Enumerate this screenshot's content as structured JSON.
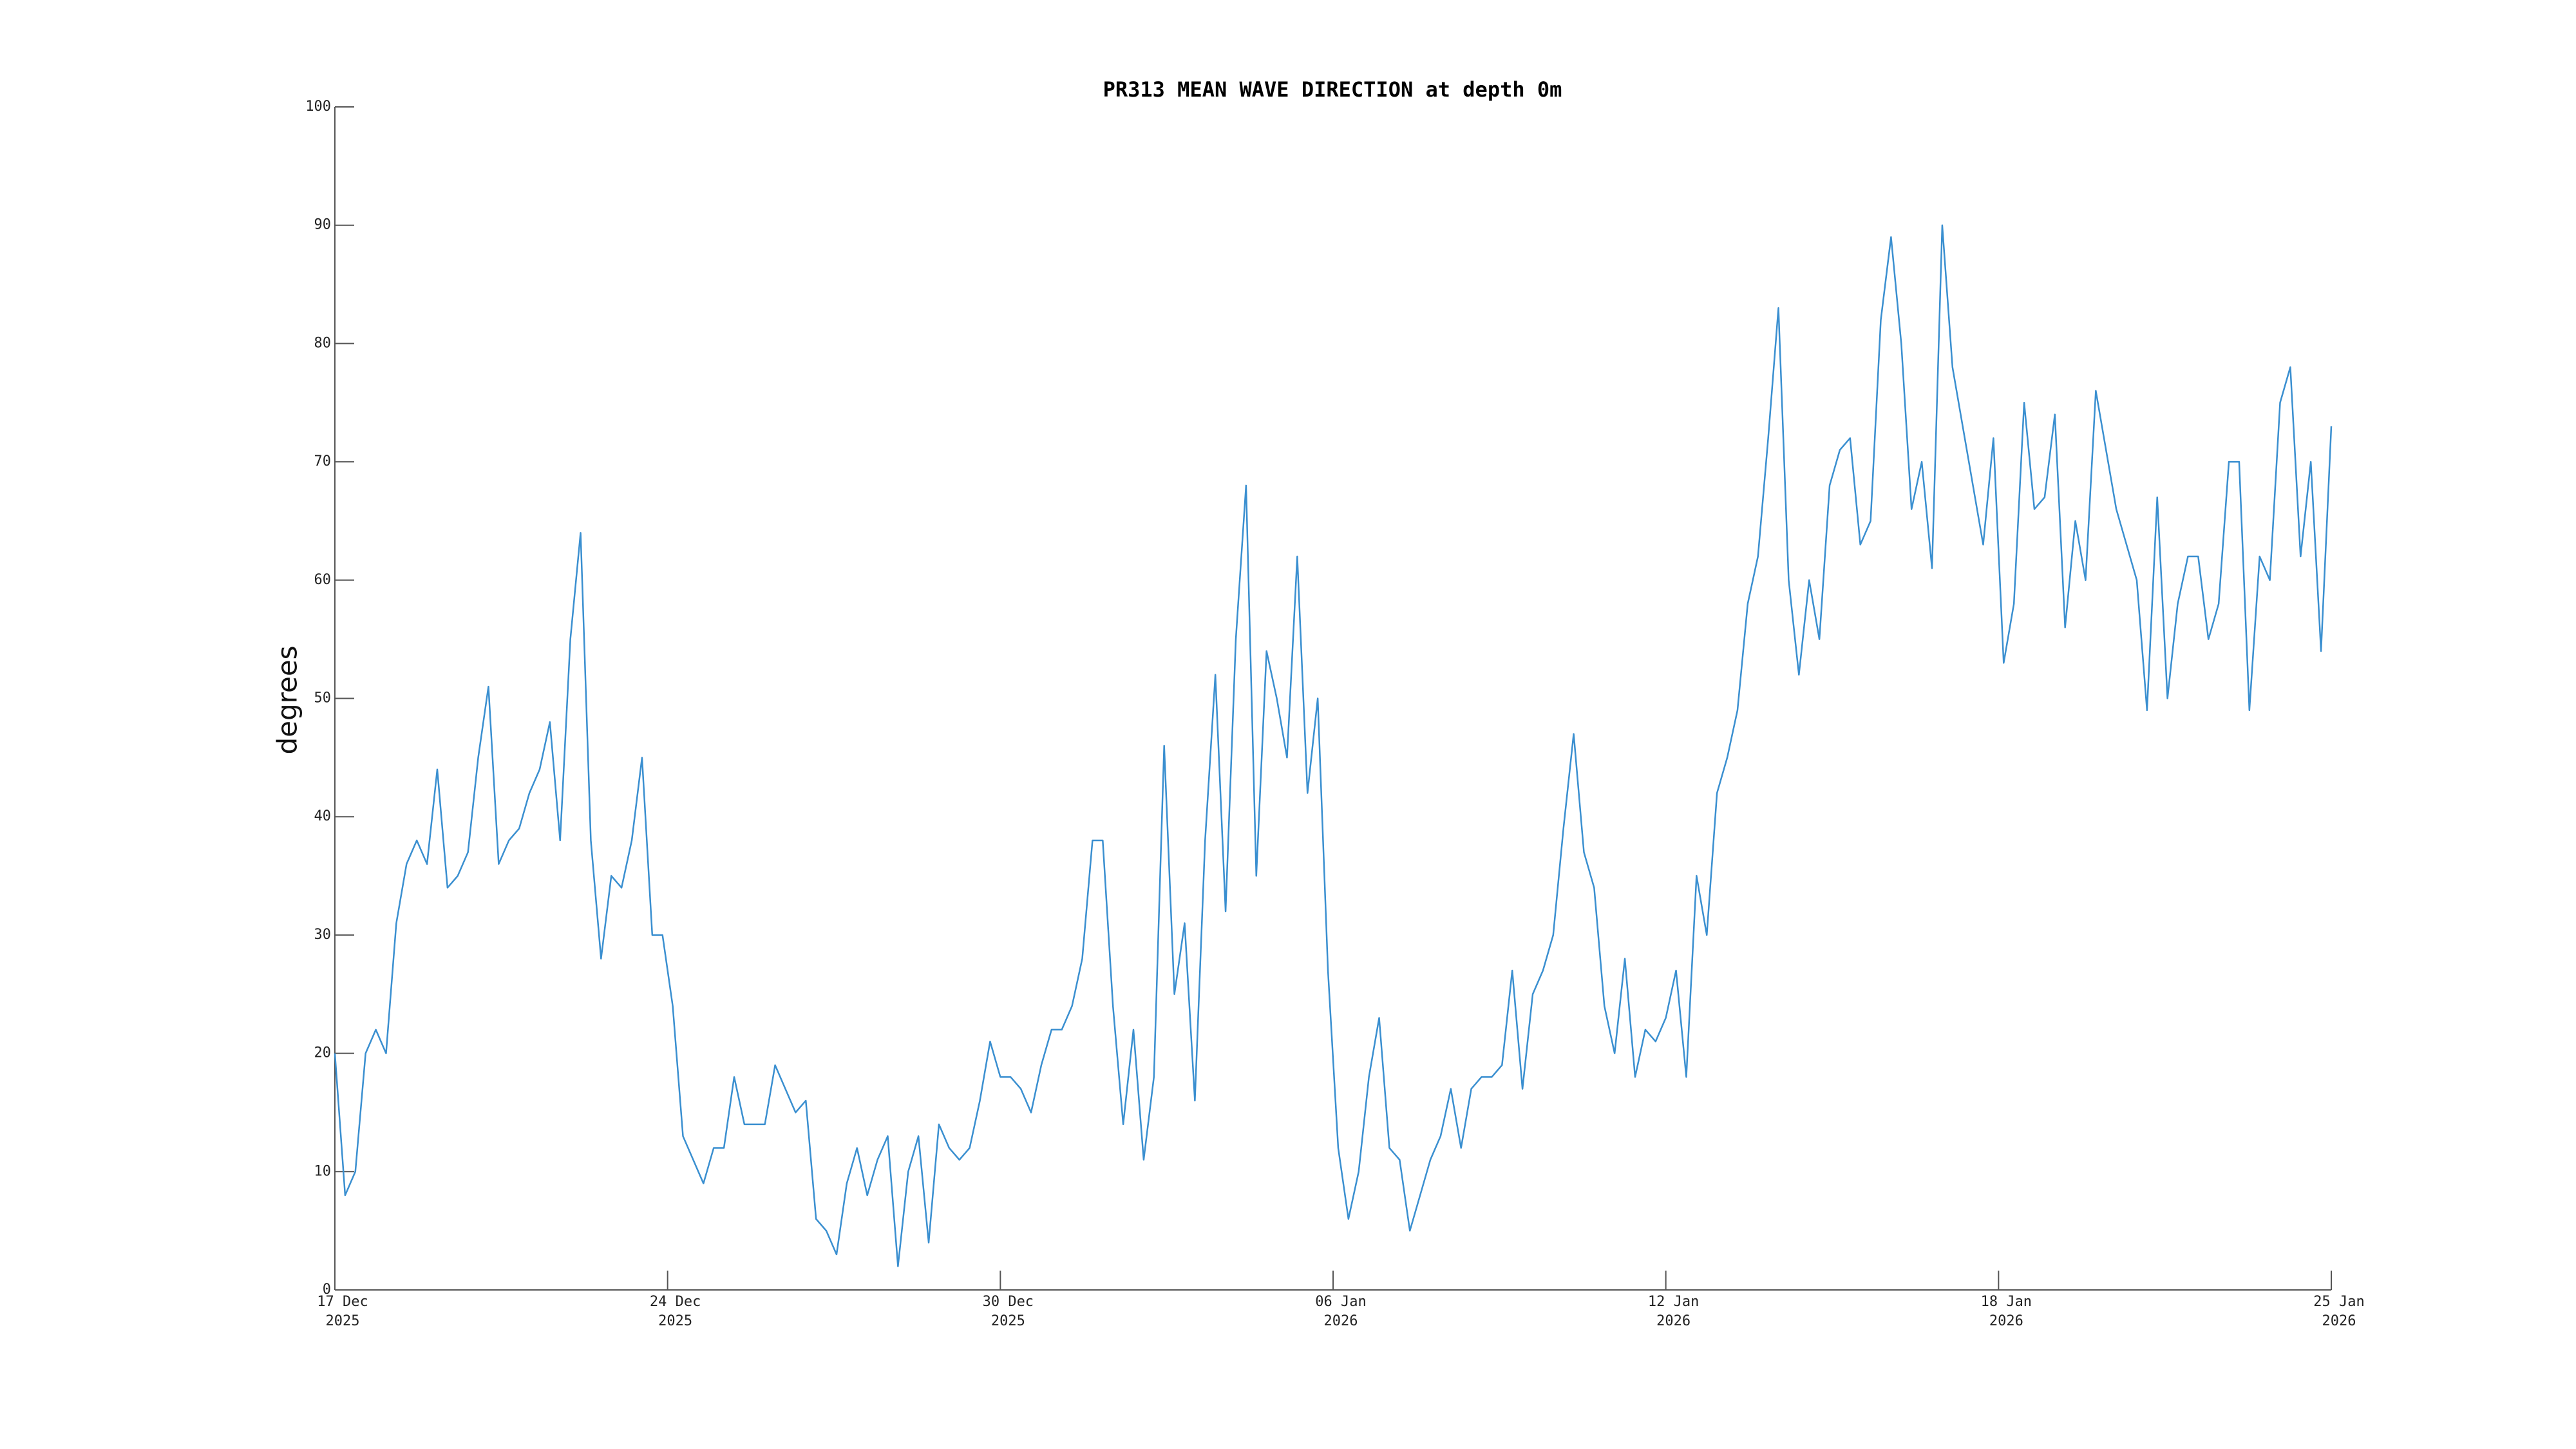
{
  "chart_data": {
    "type": "line",
    "title": "PR313 MEAN WAVE DIRECTION at depth 0m",
    "ylabel": "degrees",
    "color": "#3a8fd0",
    "xlim": [
      0,
      39
    ],
    "xticks": [
      {
        "value": 0,
        "label": "17 Dec\n2025"
      },
      {
        "value": 6.5,
        "label": "24 Dec\n2025"
      },
      {
        "value": 13,
        "label": "30 Dec\n2025"
      },
      {
        "value": 19.5,
        "label": "06 Jan\n2026"
      },
      {
        "value": 26,
        "label": "12 Jan\n2026"
      },
      {
        "value": 32.5,
        "label": "18 Jan\n2026"
      },
      {
        "value": 39,
        "label": "25 Jan\n2026"
      }
    ],
    "ylim": [
      0,
      100
    ],
    "yticks": [
      0,
      10,
      20,
      30,
      40,
      50,
      60,
      70,
      80,
      90,
      100
    ],
    "x": [
      0,
      0.2,
      0.4,
      0.6,
      0.8,
      1,
      1.2,
      1.4,
      1.6,
      1.8,
      2,
      2.2,
      2.4,
      2.6,
      2.8,
      3,
      3.2,
      3.4,
      3.6,
      3.8,
      4,
      4.2,
      4.4,
      4.6,
      4.8,
      5,
      5.2,
      5.4,
      5.6,
      5.8,
      6,
      6.2,
      6.4,
      6.6,
      6.8,
      7,
      7.2,
      7.4,
      7.6,
      7.8,
      8,
      8.2,
      8.4,
      8.6,
      8.8,
      9,
      9.2,
      9.4,
      9.6,
      9.8,
      10,
      10.2,
      10.4,
      10.6,
      10.8,
      11,
      11.2,
      11.4,
      11.6,
      11.8,
      12,
      12.2,
      12.4,
      12.6,
      12.8,
      13,
      13.2,
      13.4,
      13.6,
      13.8,
      14,
      14.2,
      14.4,
      14.6,
      14.8,
      15,
      15.2,
      15.4,
      15.6,
      15.8,
      16,
      16.2,
      16.4,
      16.6,
      16.8,
      17,
      17.2,
      17.4,
      17.6,
      17.8,
      18,
      18.2,
      18.4,
      18.6,
      18.8,
      19,
      19.2,
      19.4,
      19.6,
      19.8,
      20,
      20.2,
      20.4,
      20.6,
      20.8,
      21,
      21.2,
      21.4,
      21.6,
      21.8,
      22,
      22.2,
      22.4,
      22.6,
      22.8,
      23,
      23.2,
      23.4,
      23.6,
      23.8,
      24,
      24.2,
      24.4,
      24.6,
      24.8,
      25,
      25.2,
      25.4,
      25.6,
      25.8,
      26,
      26.2,
      26.4,
      26.6,
      26.8,
      27,
      27.2,
      27.4,
      27.6,
      27.8,
      28,
      28.2,
      28.4,
      28.6,
      28.8,
      29,
      29.2,
      29.4,
      29.6,
      29.8,
      30,
      30.2,
      30.4,
      30.6,
      30.8,
      31,
      31.2,
      31.4,
      31.6,
      31.8,
      32,
      32.2,
      32.4,
      32.6,
      32.8,
      33,
      33.2,
      33.4,
      33.6,
      33.8,
      34,
      34.2,
      34.4,
      34.6,
      34.8,
      35,
      35.2,
      35.4,
      35.6,
      35.8,
      36,
      36.2,
      36.4,
      36.6,
      36.8,
      37,
      37.2,
      37.4,
      37.6,
      37.8,
      38,
      38.2,
      38.4,
      38.6,
      38.8,
      39
    ],
    "values": [
      20,
      8,
      10,
      20,
      22,
      20,
      31,
      36,
      38,
      36,
      44,
      34,
      35,
      37,
      45,
      51,
      36,
      38,
      39,
      42,
      44,
      48,
      38,
      55,
      64,
      38,
      28,
      35,
      34,
      38,
      45,
      30,
      30,
      24,
      13,
      11,
      9,
      12,
      12,
      18,
      14,
      14,
      14,
      19,
      17,
      15,
      16,
      6,
      5,
      3,
      9,
      12,
      8,
      11,
      13,
      2,
      10,
      13,
      4,
      14,
      12,
      11,
      12,
      16,
      21,
      18,
      18,
      17,
      15,
      19,
      22,
      22,
      24,
      28,
      38,
      38,
      24,
      14,
      22,
      11,
      18,
      46,
      25,
      31,
      16,
      38,
      52,
      32,
      55,
      68,
      35,
      54,
      50,
      45,
      62,
      42,
      50,
      27,
      12,
      6,
      10,
      18,
      23,
      12,
      11,
      5,
      8,
      11,
      13,
      17,
      12,
      17,
      18,
      18,
      19,
      27,
      17,
      25,
      27,
      30,
      39,
      47,
      37,
      34,
      24,
      20,
      28,
      18,
      22,
      21,
      23,
      27,
      18,
      35,
      30,
      42,
      45,
      49,
      58,
      62,
      72,
      83,
      60,
      52,
      60,
      55,
      68,
      71,
      72,
      63,
      65,
      82,
      89,
      80,
      66,
      70,
      61,
      90,
      78,
      73,
      68,
      63,
      72,
      53,
      58,
      75,
      66,
      67,
      74,
      56,
      65,
      60,
      76,
      71,
      66,
      63,
      60,
      49,
      67,
      50,
      58,
      62,
      62,
      55,
      58,
      70,
      70,
      49,
      62,
      60,
      75,
      78,
      62,
      70,
      54,
      73
    ]
  }
}
